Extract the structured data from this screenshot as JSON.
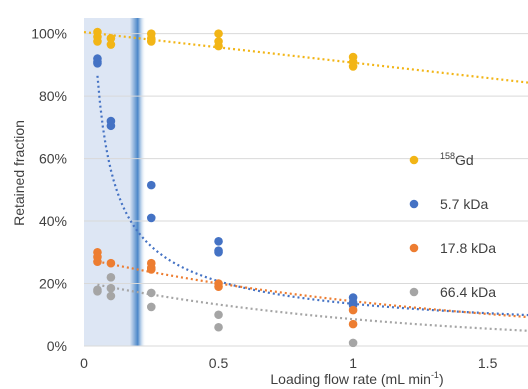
{
  "chart_data": {
    "type": "scatter",
    "title": "",
    "xlabel": "Loading flow rate (mL min",
    "xlabel_superscript": "-1",
    "xlabel_suffix": ")",
    "ylabel": "Retained fraction",
    "xlim": [
      0,
      1.65
    ],
    "ylim": [
      0,
      1.05
    ],
    "x_ticks": [
      0,
      0.5,
      1,
      1.5
    ],
    "x_tick_labels": [
      "0",
      "0.5",
      "1",
      "1.5"
    ],
    "y_ticks": [
      0,
      0.2,
      0.4,
      0.6,
      0.8,
      1.0
    ],
    "y_tick_labels": [
      "0%",
      "20%",
      "40%",
      "60%",
      "80%",
      "100%"
    ],
    "grid": "horizontal",
    "legend_position": "right",
    "shaded_region": {
      "x_from": 0,
      "x_to": 0.2,
      "edge_x": 0.2,
      "color": "#dde6f4",
      "edge_color": "#4a86c8"
    },
    "series": [
      {
        "name_superscript": "158",
        "name": "Gd",
        "color": "#f2b516",
        "x": [
          0.05,
          0.05,
          0.05,
          0.1,
          0.1,
          0.25,
          0.25,
          0.25,
          0.5,
          0.5,
          0.5,
          1,
          1,
          1
        ],
        "y": [
          1.005,
          0.99,
          0.975,
          0.985,
          0.965,
          1.0,
          0.985,
          0.975,
          1.0,
          0.975,
          0.96,
          0.925,
          0.91,
          0.895
        ],
        "trend": {
          "type": "linear",
          "slope": -0.098,
          "intercept": 1.005
        }
      },
      {
        "name": "5.7 kDa",
        "color": "#4472c4",
        "x": [
          0.05,
          0.05,
          0.05,
          0.1,
          0.1,
          0.25,
          0.25,
          0.5,
          0.5,
          0.5,
          1,
          1,
          1
        ],
        "y": [
          0.92,
          0.91,
          0.905,
          0.72,
          0.705,
          0.515,
          0.41,
          0.335,
          0.305,
          0.3,
          0.155,
          0.14,
          0.13
        ],
        "trend": {
          "type": "power",
          "a": 0.135,
          "b": -0.62,
          "x_start": 0.05
        }
      },
      {
        "name": "17.8 kDa",
        "color": "#ed7d31",
        "x": [
          0.05,
          0.05,
          0.05,
          0.1,
          0.25,
          0.25,
          0.25,
          0.5,
          0.5,
          1,
          1
        ],
        "y": [
          0.3,
          0.285,
          0.27,
          0.265,
          0.265,
          0.25,
          0.245,
          0.2,
          0.19,
          0.115,
          0.07
        ],
        "trend": {
          "type": "exponential",
          "a": 0.28,
          "b": -0.67,
          "x_start": 0.05
        }
      },
      {
        "name": "66.4 kDa",
        "color": "#a5a5a5",
        "x": [
          0.05,
          0.05,
          0.1,
          0.1,
          0.1,
          0.25,
          0.25,
          0.5,
          0.5,
          1
        ],
        "y": [
          0.18,
          0.175,
          0.22,
          0.185,
          0.16,
          0.17,
          0.125,
          0.1,
          0.06,
          0.01
        ],
        "trend": {
          "type": "exponential",
          "a": 0.205,
          "b": -0.87,
          "x_start": 0.05
        }
      }
    ]
  }
}
